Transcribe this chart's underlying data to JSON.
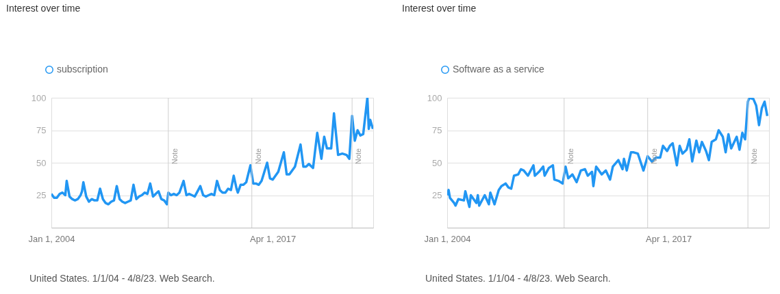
{
  "chart_data": [
    {
      "type": "line",
      "title": "Interest over time",
      "legend": "top left",
      "grid": "y",
      "line_style": "solid",
      "x": [
        "2004-01",
        "2004-03",
        "2004-05",
        "2004-07",
        "2004-09",
        "2004-11",
        "2004-12",
        "2005-02",
        "2005-04",
        "2005-06",
        "2005-08",
        "2005-10",
        "2005-11",
        "2005-12",
        "2006-02",
        "2006-04",
        "2006-06",
        "2006-08",
        "2006-10",
        "2006-12",
        "2007-02",
        "2007-04",
        "2007-06",
        "2007-08",
        "2007-10",
        "2007-12",
        "2008-02",
        "2008-04",
        "2008-06",
        "2008-08",
        "2008-10",
        "2008-12",
        "2009-02",
        "2009-04",
        "2009-06",
        "2009-08",
        "2009-10",
        "2009-12",
        "2010-02",
        "2010-04",
        "2010-06",
        "2010-08",
        "2010-10",
        "2010-12",
        "2011-01",
        "2011-03",
        "2011-05",
        "2011-07",
        "2011-09",
        "2011-12",
        "2012-02",
        "2012-04",
        "2012-06",
        "2012-08",
        "2012-10",
        "2012-12",
        "2013-02",
        "2013-04",
        "2013-06",
        "2013-08",
        "2013-10",
        "2013-12",
        "2014-02",
        "2014-04",
        "2014-06",
        "2014-08",
        "2014-10",
        "2014-12",
        "2015-02",
        "2015-03",
        "2015-05",
        "2015-07",
        "2015-09",
        "2015-12",
        "2016-02",
        "2016-04",
        "2016-06",
        "2016-08",
        "2016-12",
        "2017-02",
        "2017-04",
        "2017-06",
        "2017-08",
        "2017-12",
        "2018-02",
        "2018-04",
        "2018-08",
        "2018-12",
        "2019-02",
        "2019-04",
        "2019-06",
        "2019-09",
        "2019-12",
        "2020-03",
        "2020-05",
        "2020-07",
        "2020-10",
        "2020-12",
        "2021-03",
        "2021-06",
        "2021-09",
        "2021-11",
        "2022-01",
        "2022-03",
        "2022-05",
        "2022-07",
        "2022-09",
        "2022-12",
        "2023-01",
        "2023-02",
        "2023-04"
      ],
      "series": [
        {
          "name": "subscription",
          "color": "#2196f3",
          "values": [
            26,
            23,
            23,
            26,
            27,
            25,
            36,
            24,
            22,
            21,
            22,
            25,
            28,
            35,
            24,
            20,
            22,
            21,
            21,
            30,
            22,
            19,
            18,
            20,
            21,
            32,
            22,
            20,
            19,
            20,
            21,
            33,
            22,
            24,
            25,
            27,
            26,
            34,
            24,
            26,
            28,
            22,
            21,
            18,
            27,
            25,
            26,
            25,
            27,
            36,
            25,
            26,
            25,
            24,
            28,
            32,
            25,
            24,
            25,
            26,
            25,
            36,
            29,
            27,
            27,
            30,
            29,
            40,
            30,
            27,
            33,
            33,
            35,
            48,
            34,
            34,
            33,
            36,
            50,
            38,
            37,
            40,
            43,
            58,
            41,
            41,
            47,
            64,
            47,
            47,
            49,
            46,
            73,
            53,
            70,
            61,
            61,
            88,
            56,
            57,
            56,
            53,
            86,
            67,
            75,
            71,
            72,
            100,
            76,
            83,
            76
          ]
        }
      ],
      "xlim": [
        "2004-01-01",
        "2023-04-08"
      ],
      "xticks": [
        {
          "value": "2004-01-01",
          "label": "Jan 1, 2004"
        },
        {
          "value": "2017-04-01",
          "label": "Apr 1, 2017"
        }
      ],
      "ylim": [
        0,
        100
      ],
      "yticks": [
        25,
        50,
        75,
        100
      ],
      "ref_lines": [
        {
          "axis": "x",
          "value": "2011-01-01",
          "label": "Note"
        },
        {
          "axis": "x",
          "value": "2016-01-01",
          "label": "Note"
        },
        {
          "axis": "x",
          "value": "2022-01-01",
          "label": "Note"
        }
      ],
      "annotations": [
        "United States. 1/1/04 - 4/8/23. Web Search."
      ]
    },
    {
      "type": "line",
      "title": "Interest over time",
      "legend": "top left",
      "grid": "y",
      "line_style": "solid",
      "x": [
        "2004-01",
        "2004-02",
        "2004-03",
        "2004-06",
        "2004-07",
        "2004-09",
        "2005-01",
        "2005-02",
        "2005-05",
        "2005-06",
        "2005-10",
        "2005-11",
        "2005-12",
        "2006-04",
        "2006-07",
        "2006-08",
        "2006-11",
        "2007-02",
        "2007-04",
        "2007-07",
        "2007-09",
        "2007-11",
        "2008-01",
        "2008-04",
        "2008-06",
        "2008-08",
        "2008-11",
        "2009-03",
        "2009-04",
        "2009-07",
        "2009-10",
        "2009-11",
        "2010-02",
        "2010-05",
        "2010-06",
        "2010-09",
        "2010-12",
        "2011-02",
        "2011-04",
        "2011-07",
        "2011-10",
        "2012-01",
        "2012-04",
        "2012-06",
        "2012-09",
        "2012-10",
        "2012-12",
        "2013-02",
        "2013-04",
        "2013-07",
        "2013-10",
        "2013-12",
        "2014-04",
        "2014-07",
        "2014-08",
        "2014-10",
        "2015-01",
        "2015-03",
        "2015-06",
        "2015-10",
        "2016-01",
        "2016-04",
        "2016-07",
        "2016-10",
        "2016-12",
        "2017-03",
        "2017-05",
        "2017-07",
        "2017-10",
        "2017-12",
        "2018-02",
        "2018-05",
        "2018-07",
        "2018-09",
        "2018-12",
        "2019-02",
        "2019-04",
        "2019-07",
        "2019-09",
        "2019-11",
        "2020-02",
        "2020-04",
        "2020-07",
        "2020-09",
        "2020-11",
        "2021-01",
        "2021-05",
        "2021-07",
        "2021-09",
        "2021-11",
        "2022-01",
        "2022-02",
        "2022-05",
        "2022-07",
        "2022-09",
        "2022-11",
        "2023-01",
        "2023-03"
      ],
      "series": [
        {
          "name": "Software as a service",
          "color": "#2196f3",
          "values": [
            25,
            29,
            23,
            19,
            17,
            22,
            21,
            28,
            16,
            25,
            19,
            25,
            17,
            25,
            18,
            27,
            18,
            29,
            32,
            34,
            31,
            30,
            40,
            41,
            45,
            44,
            40,
            48,
            40,
            43,
            47,
            40,
            46,
            48,
            37,
            36,
            34,
            47,
            38,
            41,
            35,
            44,
            45,
            40,
            43,
            32,
            47,
            44,
            41,
            44,
            37,
            47,
            52,
            45,
            53,
            44,
            58,
            58,
            57,
            44,
            55,
            51,
            54,
            54,
            63,
            59,
            63,
            65,
            48,
            63,
            57,
            60,
            68,
            51,
            67,
            58,
            66,
            59,
            52,
            66,
            68,
            75,
            70,
            58,
            72,
            61,
            70,
            60,
            73,
            68,
            97,
            100,
            99,
            94,
            79,
            92,
            97,
            86
          ]
        }
      ],
      "xlim": [
        "2004-01-01",
        "2023-04-08"
      ],
      "xticks": [
        {
          "value": "2004-01-01",
          "label": "Jan 1, 2004"
        },
        {
          "value": "2017-04-01",
          "label": "Apr 1, 2017"
        }
      ],
      "ylim": [
        0,
        100
      ],
      "yticks": [
        25,
        50,
        75,
        100
      ],
      "ref_lines": [
        {
          "axis": "x",
          "value": "2011-01-01",
          "label": "Note"
        },
        {
          "axis": "x",
          "value": "2016-01-01",
          "label": "Note"
        },
        {
          "axis": "x",
          "value": "2022-01-01",
          "label": "Note"
        }
      ],
      "annotations": [
        "United States. 1/1/04 - 4/8/23. Web Search."
      ]
    }
  ]
}
